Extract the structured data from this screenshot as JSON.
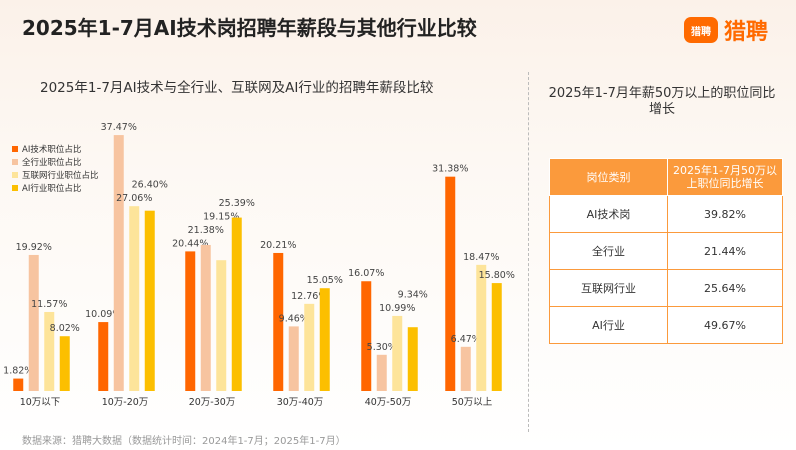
{
  "title": "2025年1-7月AI技术岗招聘年薪段与其他行业比较",
  "logo": {
    "icon_text": "猎聘",
    "text": "猎聘"
  },
  "chart_data": {
    "type": "bar",
    "title": "2025年1-7月AI技术与全行业、互联网及AI行业的招聘年薪段比较",
    "categories": [
      "10万以下",
      "10万-20万",
      "20万-30万",
      "30万-40万",
      "40万-50万",
      "50万以上"
    ],
    "series": [
      {
        "name": "AI技术职位占比",
        "color": "#ff6600",
        "values": [
          1.82,
          10.09,
          20.44,
          20.21,
          16.07,
          31.38
        ]
      },
      {
        "name": "全行业职位占比",
        "color": "#f7c4a0",
        "values": [
          19.92,
          37.47,
          21.38,
          9.46,
          5.3,
          6.47
        ]
      },
      {
        "name": "互联网行业职位占比",
        "color": "#fde49a",
        "values": [
          11.57,
          27.06,
          19.15,
          12.76,
          10.99,
          18.47
        ]
      },
      {
        "name": "AI行业职位占比",
        "color": "#fcbf00",
        "values": [
          8.02,
          26.4,
          25.39,
          15.05,
          9.34,
          15.8
        ]
      }
    ],
    "unit": "%",
    "ylim": [
      0,
      40
    ],
    "legend": "top-left",
    "grid": false
  },
  "side": {
    "title": "2025年1-7月年薪50万以上的职位同比增长",
    "headers": [
      "岗位类别",
      "2025年1-7月50万以上职位同比增长"
    ],
    "rows": [
      [
        "AI技术岗",
        "39.82%"
      ],
      [
        "全行业",
        "21.44%"
      ],
      [
        "互联网行业",
        "25.64%"
      ],
      [
        "AI行业",
        "49.67%"
      ]
    ]
  },
  "source": "数据来源：猎聘大数据（数据统计时间：2024年1-7月；2025年1-7月）"
}
